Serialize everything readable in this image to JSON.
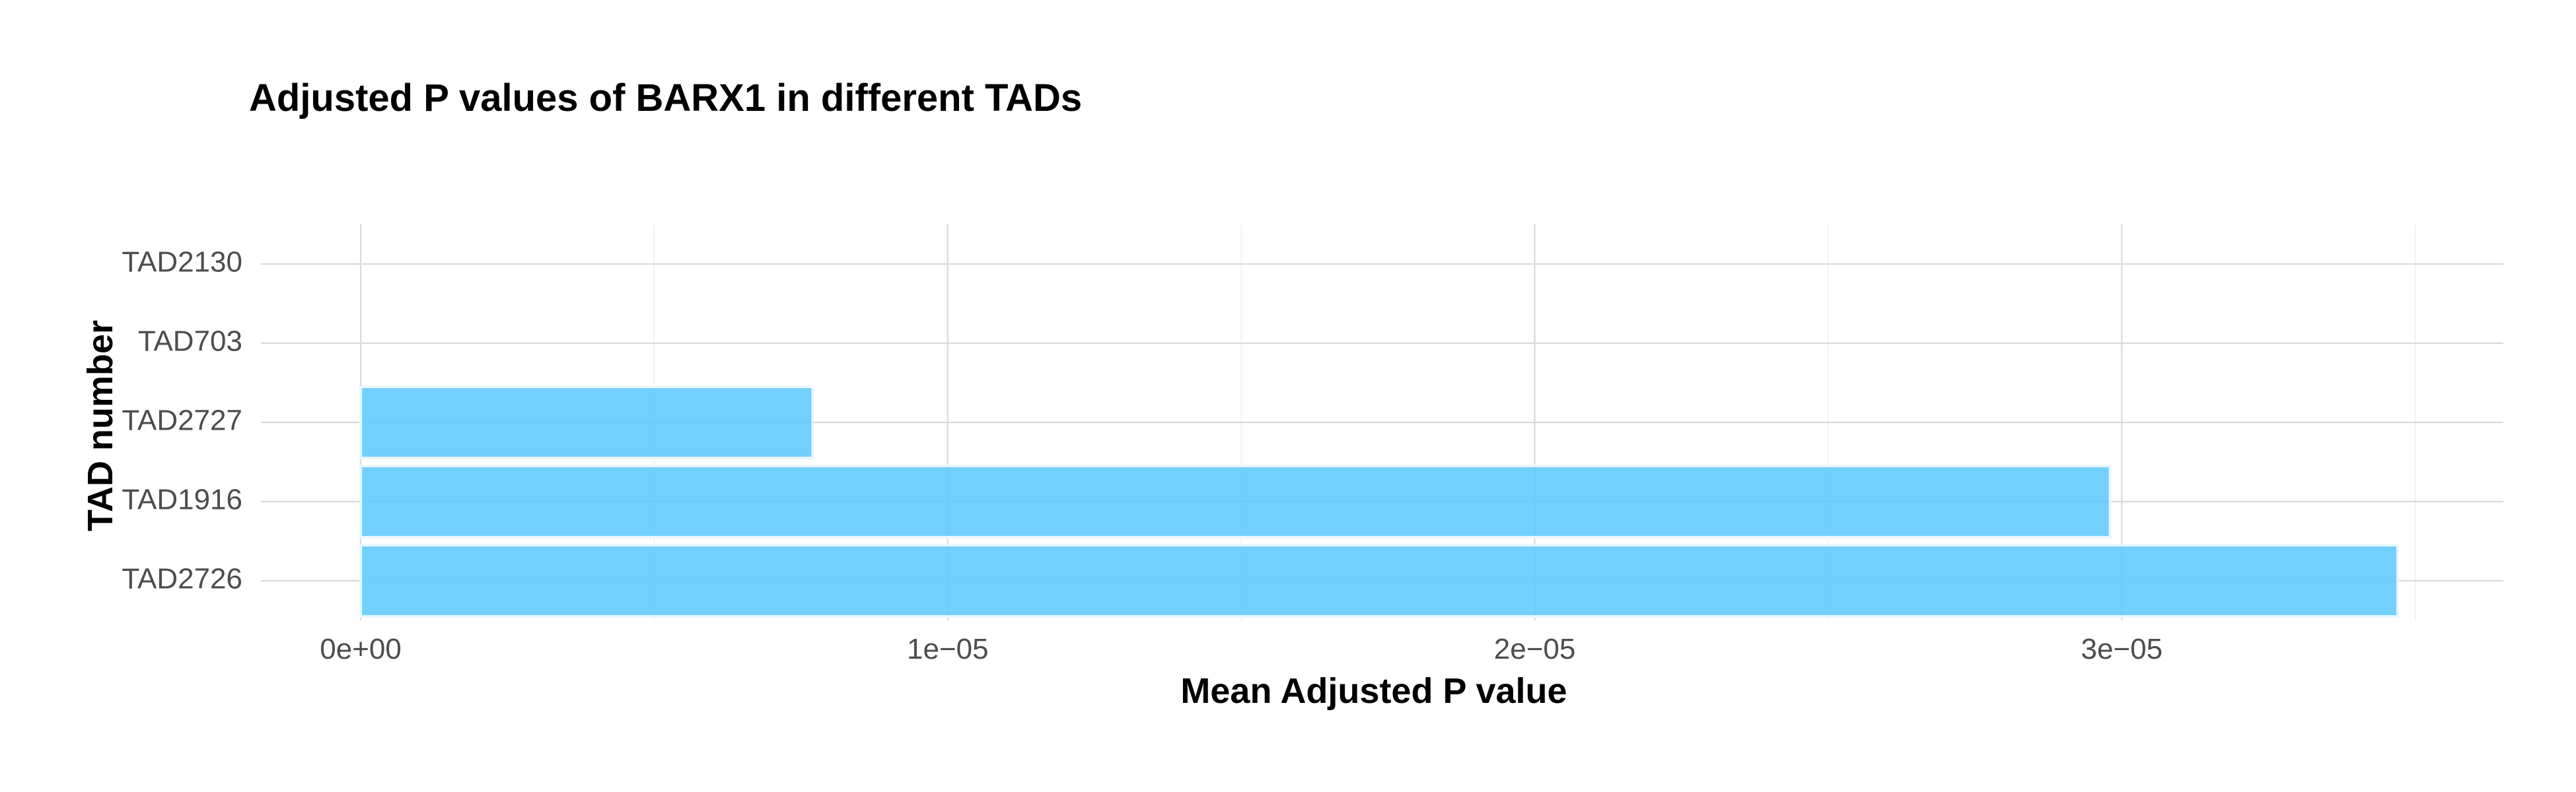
{
  "chart_data": {
    "type": "bar",
    "orientation": "horizontal",
    "title": "Adjusted P values of BARX1 in different TADs",
    "xlabel": "Mean Adjusted P value",
    "ylabel": "TAD number",
    "categories": [
      "TAD2726",
      "TAD1916",
      "TAD2727",
      "TAD703",
      "TAD2130"
    ],
    "values": [
      3.47e-05,
      2.98e-05,
      7.7e-06,
      0,
      0
    ],
    "xlim": [
      -1.7e-06,
      3.65e-05
    ],
    "xticks": [
      0,
      1e-05,
      2e-05,
      3e-05
    ],
    "xtick_labels": [
      "0e+00",
      "1e−05",
      "2e−05",
      "3e−05"
    ],
    "bar_color": "#5bc8fb",
    "grid": true,
    "legend": "none"
  }
}
